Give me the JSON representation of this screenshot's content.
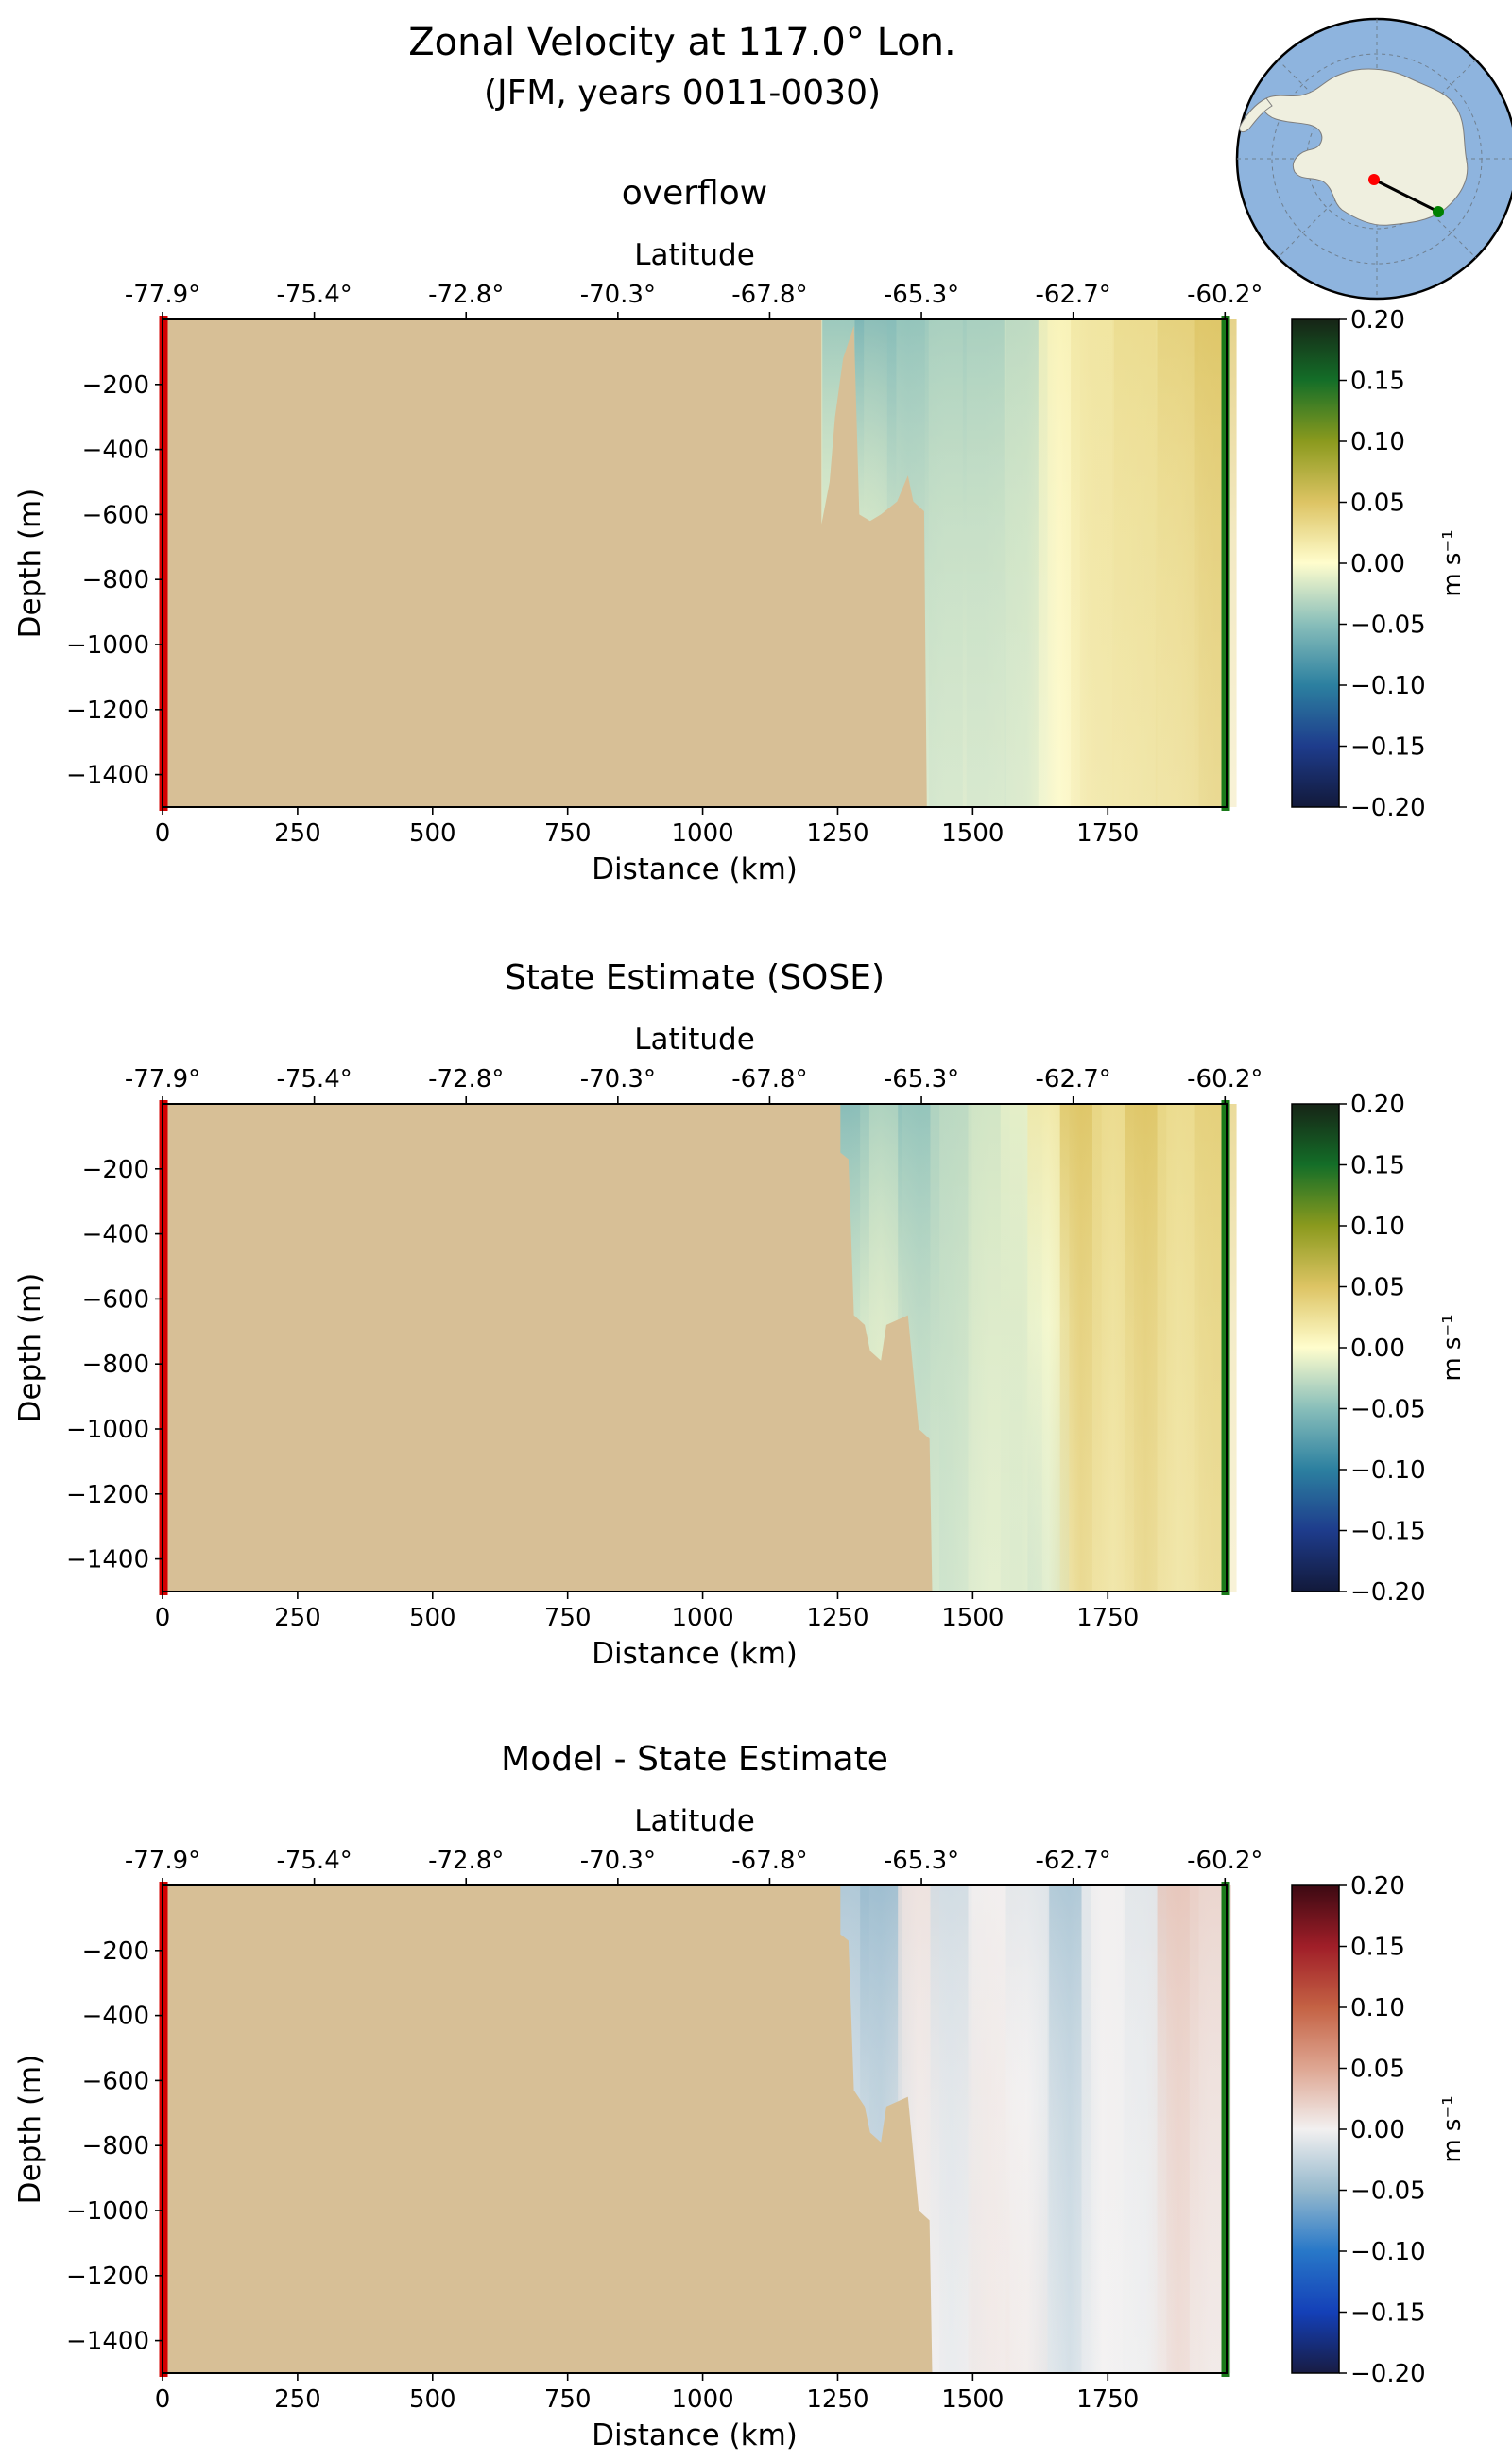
{
  "figure": {
    "title_line1": "Zonal Velocity at 117.0° Lon.",
    "title_line2": "(JFM, years 0011-0030)"
  },
  "inset_map": {
    "description_colors": {
      "ocean": "#8eb4de",
      "land": "#efefdf",
      "start": "#ff0000",
      "end": "#008000"
    }
  },
  "colors": {
    "land": "#d7bf96",
    "left_marker": "#d40000",
    "right_marker": "#1a7a1a"
  },
  "chart_data": [
    {
      "type": "heatmap",
      "title": "overflow",
      "xlabel": "Distance (km)",
      "ylabel": "Depth (m)",
      "top_xlabel": "Latitude",
      "xlim": [
        0,
        1970
      ],
      "ylim": [
        -1500,
        0
      ],
      "xticks": [
        0,
        250,
        500,
        750,
        1000,
        1250,
        1500,
        1750
      ],
      "xticklabels": [
        "0",
        "250",
        "500",
        "750",
        "1000",
        "1250",
        "1500",
        "1750"
      ],
      "yticks": [
        -200,
        -400,
        -600,
        -800,
        -1000,
        -1200,
        -1400
      ],
      "yticklabels": [
        "−200",
        "−400",
        "−600",
        "−800",
        "−1000",
        "−1200",
        "−1400"
      ],
      "top_ticks_km": [
        0,
        281,
        562,
        843,
        1124,
        1405,
        1686,
        1967
      ],
      "top_ticklabels": [
        "-77.9°",
        "-75.4°",
        "-72.8°",
        "-70.3°",
        "-67.8°",
        "-65.3°",
        "-62.7°",
        "-60.2°"
      ],
      "colorbar": {
        "label": "m s⁻¹",
        "range": [
          -0.2,
          0.2
        ],
        "ticks": [
          "0.20",
          "0.15",
          "0.10",
          "0.05",
          "0.00",
          "−0.05",
          "−0.10",
          "−0.15",
          "−0.20"
        ],
        "colormap": "delta"
      },
      "bathymetry_km_depth": [
        [
          1220,
          -630
        ],
        [
          1235,
          -500
        ],
        [
          1245,
          -300
        ],
        [
          1260,
          -120
        ],
        [
          1280,
          -20
        ],
        [
          1290,
          -600
        ],
        [
          1310,
          -620
        ],
        [
          1330,
          -600
        ],
        [
          1345,
          -580
        ],
        [
          1360,
          -560
        ],
        [
          1380,
          -480
        ],
        [
          1390,
          -560
        ],
        [
          1410,
          -590
        ],
        [
          1415,
          -1500
        ]
      ],
      "velocity_columns": [
        {
          "km": 1260,
          "top": -0.05,
          "bottom": 0.02
        },
        {
          "km": 1320,
          "top": -0.06,
          "bottom": 0.02
        },
        {
          "km": 1380,
          "top": -0.05,
          "bottom": -0.01
        },
        {
          "km": 1450,
          "top": -0.04,
          "bottom": -0.01
        },
        {
          "km": 1520,
          "top": -0.04,
          "bottom": -0.01
        },
        {
          "km": 1600,
          "top": -0.03,
          "bottom": -0.01
        },
        {
          "km": 1660,
          "top": 0.01,
          "bottom": 0.0
        },
        {
          "km": 1720,
          "top": 0.02,
          "bottom": 0.02
        },
        {
          "km": 1800,
          "top": 0.03,
          "bottom": 0.02
        },
        {
          "km": 1880,
          "top": 0.04,
          "bottom": 0.02
        },
        {
          "km": 1950,
          "top": 0.05,
          "bottom": 0.03
        }
      ]
    },
    {
      "type": "heatmap",
      "title": "State Estimate (SOSE)",
      "xlabel": "Distance (km)",
      "ylabel": "Depth (m)",
      "top_xlabel": "Latitude",
      "xlim": [
        0,
        1970
      ],
      "ylim": [
        -1500,
        0
      ],
      "xticks": [
        0,
        250,
        500,
        750,
        1000,
        1250,
        1500,
        1750
      ],
      "xticklabels": [
        "0",
        "250",
        "500",
        "750",
        "1000",
        "1250",
        "1500",
        "1750"
      ],
      "yticks": [
        -200,
        -400,
        -600,
        -800,
        -1000,
        -1200,
        -1400
      ],
      "yticklabels": [
        "−200",
        "−400",
        "−600",
        "−800",
        "−1000",
        "−1200",
        "−1400"
      ],
      "top_ticks_km": [
        0,
        281,
        562,
        843,
        1124,
        1405,
        1686,
        1967
      ],
      "top_ticklabels": [
        "-77.9°",
        "-75.4°",
        "-72.8°",
        "-70.3°",
        "-67.8°",
        "-65.3°",
        "-62.7°",
        "-60.2°"
      ],
      "colorbar": {
        "label": "m s⁻¹",
        "range": [
          -0.2,
          0.2
        ],
        "ticks": [
          "0.20",
          "0.15",
          "0.10",
          "0.05",
          "0.00",
          "−0.05",
          "−0.10",
          "−0.15",
          "−0.20"
        ],
        "colormap": "delta"
      },
      "bathymetry_km_depth": [
        [
          1255,
          -150
        ],
        [
          1270,
          -170
        ],
        [
          1280,
          -650
        ],
        [
          1300,
          -680
        ],
        [
          1310,
          -760
        ],
        [
          1330,
          -790
        ],
        [
          1340,
          -680
        ],
        [
          1380,
          -650
        ],
        [
          1400,
          -1000
        ],
        [
          1420,
          -1030
        ],
        [
          1425,
          -1500
        ]
      ],
      "velocity_columns": [
        {
          "km": 1270,
          "top": -0.06,
          "bottom": 0.01
        },
        {
          "km": 1330,
          "top": -0.04,
          "bottom": 0.01
        },
        {
          "km": 1400,
          "top": -0.05,
          "bottom": -0.01
        },
        {
          "km": 1460,
          "top": -0.03,
          "bottom": -0.02
        },
        {
          "km": 1530,
          "top": -0.02,
          "bottom": -0.01
        },
        {
          "km": 1590,
          "top": -0.01,
          "bottom": -0.02
        },
        {
          "km": 1640,
          "top": 0.02,
          "bottom": -0.03
        },
        {
          "km": 1700,
          "top": 0.05,
          "bottom": 0.03
        },
        {
          "km": 1760,
          "top": 0.03,
          "bottom": 0.02
        },
        {
          "km": 1820,
          "top": 0.05,
          "bottom": 0.03
        },
        {
          "km": 1880,
          "top": 0.03,
          "bottom": 0.02
        },
        {
          "km": 1950,
          "top": 0.04,
          "bottom": 0.03
        }
      ]
    },
    {
      "type": "heatmap",
      "title": "Model - State Estimate",
      "xlabel": "Distance (km)",
      "ylabel": "Depth (m)",
      "top_xlabel": "Latitude",
      "xlim": [
        0,
        1970
      ],
      "ylim": [
        -1500,
        0
      ],
      "xticks": [
        0,
        250,
        500,
        750,
        1000,
        1250,
        1500,
        1750
      ],
      "xticklabels": [
        "0",
        "250",
        "500",
        "750",
        "1000",
        "1250",
        "1500",
        "1750"
      ],
      "yticks": [
        -200,
        -400,
        -600,
        -800,
        -1000,
        -1200,
        -1400
      ],
      "yticklabels": [
        "−200",
        "−400",
        "−600",
        "−800",
        "−1000",
        "−1200",
        "−1400"
      ],
      "top_ticks_km": [
        0,
        281,
        562,
        843,
        1124,
        1405,
        1686,
        1967
      ],
      "top_ticklabels": [
        "-77.9°",
        "-75.4°",
        "-72.8°",
        "-70.3°",
        "-67.8°",
        "-65.3°",
        "-62.7°",
        "-60.2°"
      ],
      "colorbar": {
        "label": "m s⁻¹",
        "range": [
          -0.2,
          0.2
        ],
        "ticks": [
          "0.20",
          "0.15",
          "0.10",
          "0.05",
          "0.00",
          "−0.05",
          "−0.10",
          "−0.15",
          "−0.20"
        ],
        "colormap": "balance"
      },
      "bathymetry_km_depth": [
        [
          1255,
          -150
        ],
        [
          1270,
          -170
        ],
        [
          1280,
          -630
        ],
        [
          1300,
          -680
        ],
        [
          1310,
          -760
        ],
        [
          1330,
          -790
        ],
        [
          1340,
          -680
        ],
        [
          1380,
          -650
        ],
        [
          1400,
          -1000
        ],
        [
          1420,
          -1030
        ],
        [
          1425,
          -1500
        ]
      ],
      "velocity_columns": [
        {
          "km": 1270,
          "top": -0.04,
          "bottom": 0.0
        },
        {
          "km": 1330,
          "top": -0.05,
          "bottom": -0.01
        },
        {
          "km": 1400,
          "top": 0.01,
          "bottom": 0.0
        },
        {
          "km": 1460,
          "top": -0.02,
          "bottom": 0.0
        },
        {
          "km": 1530,
          "top": 0.0,
          "bottom": 0.01
        },
        {
          "km": 1600,
          "top": -0.01,
          "bottom": 0.01
        },
        {
          "km": 1680,
          "top": -0.04,
          "bottom": -0.01
        },
        {
          "km": 1740,
          "top": 0.0,
          "bottom": 0.0
        },
        {
          "km": 1820,
          "top": -0.01,
          "bottom": 0.0
        },
        {
          "km": 1880,
          "top": 0.03,
          "bottom": 0.01
        },
        {
          "km": 1940,
          "top": 0.02,
          "bottom": 0.0
        }
      ]
    }
  ]
}
